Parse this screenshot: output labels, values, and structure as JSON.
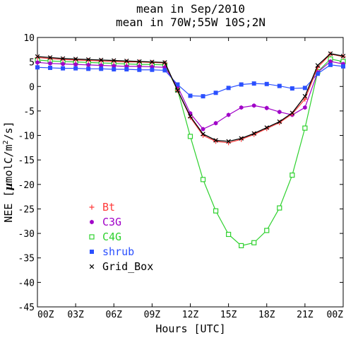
{
  "chart_data": {
    "type": "line",
    "title": "mean in Sep/2010",
    "subtitle": "mean in 70W;55W 10S;2N",
    "xlabel": "Hours [UTC]",
    "ylabel": "NEE [µmolC/m²/s]",
    "ylabel_parts": {
      "main": "NEE [",
      "mu": "µ",
      "unit": "molC/m",
      "sup": "2",
      "tail": "/s]"
    },
    "xlim": [
      0,
      24
    ],
    "ylim": [
      -45,
      10
    ],
    "x_ticks": [
      0,
      3,
      6,
      9,
      12,
      15,
      18,
      21,
      24
    ],
    "x_tick_labels": [
      "00Z",
      "03Z",
      "06Z",
      "09Z",
      "12Z",
      "15Z",
      "18Z",
      "21Z",
      "00Z"
    ],
    "y_ticks": [
      10,
      5,
      0,
      -5,
      -10,
      -15,
      -20,
      -25,
      -30,
      -35,
      -40,
      -45
    ],
    "y_tick_labels": [
      "10",
      "5",
      "0",
      "-5",
      "-10",
      "-15",
      "-20",
      "-25",
      "-30",
      "-35",
      "-40",
      "-45"
    ],
    "grid": false,
    "legend_position": "lower-left",
    "x": [
      0,
      1,
      2,
      3,
      4,
      5,
      6,
      7,
      8,
      9,
      10,
      11,
      12,
      13,
      14,
      15,
      16,
      17,
      18,
      19,
      20,
      21,
      22,
      23,
      24
    ],
    "series": [
      {
        "name": "Bt",
        "marker": "plus",
        "color": "#ff3b3b",
        "values": [
          5.9,
          5.7,
          5.5,
          5.4,
          5.3,
          5.2,
          5.1,
          5.0,
          5.0,
          4.9,
          4.8,
          -0.8,
          -6.3,
          -10.0,
          -11.2,
          -11.5,
          -10.8,
          -9.8,
          -8.6,
          -7.4,
          -5.6,
          -2.6,
          3.9,
          6.6,
          6.1
        ]
      },
      {
        "name": "C3G",
        "marker": "hexagon",
        "color": "#a000c8",
        "values": [
          4.9,
          4.7,
          4.6,
          4.5,
          4.4,
          4.3,
          4.2,
          4.1,
          4.1,
          4.0,
          3.9,
          0.0,
          -5.5,
          -8.7,
          -7.5,
          -5.8,
          -4.3,
          -3.9,
          -4.4,
          -5.2,
          -5.8,
          -4.3,
          2.9,
          5.1,
          4.6
        ]
      },
      {
        "name": "C4G",
        "marker": "square",
        "color": "#2ed12e",
        "values": [
          5.4,
          5.2,
          5.1,
          5.0,
          4.9,
          4.8,
          4.7,
          4.6,
          4.5,
          4.5,
          4.4,
          -0.7,
          -10.2,
          -19.0,
          -25.4,
          -30.2,
          -32.5,
          -31.9,
          -29.4,
          -24.8,
          -18.1,
          -8.5,
          3.0,
          5.6,
          5.1
        ]
      },
      {
        "name": "shrub",
        "marker": "filled-square",
        "color": "#2b50ff",
        "values": [
          3.9,
          3.8,
          3.7,
          3.7,
          3.6,
          3.6,
          3.5,
          3.5,
          3.4,
          3.4,
          3.3,
          0.4,
          -1.9,
          -2.0,
          -1.3,
          -0.3,
          0.4,
          0.6,
          0.5,
          0.1,
          -0.4,
          -0.3,
          2.6,
          4.4,
          4.1
        ]
      },
      {
        "name": "Grid_Box",
        "marker": "cross",
        "color": "#000000",
        "values": [
          6.1,
          5.9,
          5.7,
          5.6,
          5.5,
          5.4,
          5.3,
          5.2,
          5.1,
          5.0,
          4.9,
          -0.8,
          -6.1,
          -9.7,
          -11.0,
          -11.2,
          -10.6,
          -9.6,
          -8.4,
          -7.2,
          -5.4,
          -2.0,
          4.3,
          6.7,
          6.2
        ]
      }
    ]
  }
}
